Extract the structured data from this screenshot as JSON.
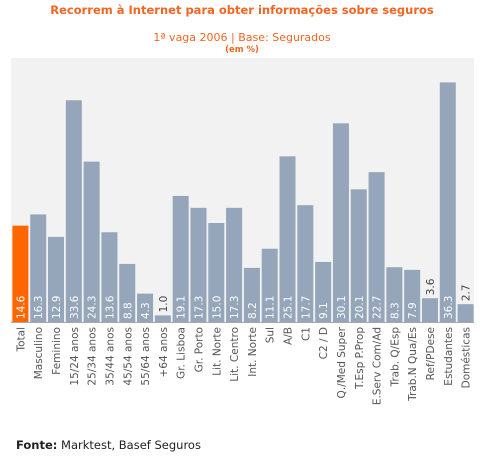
{
  "header": {
    "title": "Recorrem à Internet para obter informações sobre seguros",
    "subtitle": "1ª vaga 2006 | Base: Segurados",
    "unit": "(em %)"
  },
  "source": {
    "label": "Fonte:",
    "text": "Marktest, Basef Seguros"
  },
  "chart_data": {
    "type": "bar",
    "title": "Recorrem à Internet para obter informações sobre seguros",
    "subtitle": "1ª vaga 2006 | Base: Segurados",
    "unit": "(em %)",
    "ylim": [
      0,
      40
    ],
    "categories": [
      "Total",
      "Masculino",
      "Feminino",
      "15/24 anos",
      "25/34 anos",
      "35/44 anos",
      "45/54 anos",
      "55/64 anos",
      "+64  anos",
      "Gr. Lisboa",
      "Gr. Porto",
      "Lit. Norte",
      "Lit. Centro",
      "Int. Norte",
      "Sul",
      "A/B",
      "C1",
      "C2 / D",
      "Q./Med Super",
      "T.Esp P.Prop",
      "E.Serv Com/Ad",
      "Trab. Q/Esp",
      "Trab.N Qua/Es",
      "Ref/PDese",
      "Estudantes",
      "Domésticas"
    ],
    "values": [
      14.6,
      16.3,
      12.9,
      33.6,
      24.3,
      13.6,
      8.8,
      4.3,
      1.0,
      19.1,
      17.3,
      15.0,
      17.3,
      8.2,
      11.1,
      25.1,
      17.7,
      9.1,
      30.1,
      20.1,
      22.7,
      8.3,
      7.9,
      3.6,
      36.3,
      2.7
    ],
    "value_labels": [
      "14.6",
      "16.3",
      "12.9",
      "33.6",
      "24.3",
      "13.6",
      "8.8",
      "4.3",
      "1.0",
      "19.1",
      "17.3",
      "15.0",
      "17.3",
      "8.2",
      "11.1",
      "25.1",
      "17.7",
      "9.1",
      "30.1",
      "20.1",
      "22.7",
      "8.3",
      "7.9",
      "3.6",
      "36.3",
      "2.7"
    ],
    "highlight_index": 0,
    "colors": {
      "bar": "#95a5ba",
      "highlight": "#ff6600",
      "plot_bg": "#f2f2f2",
      "axis": "#a8a8a8",
      "label_inside": "#ffffff",
      "label_outside": "#444444",
      "category_text": "#555555"
    },
    "grid": false,
    "legend": "none"
  }
}
